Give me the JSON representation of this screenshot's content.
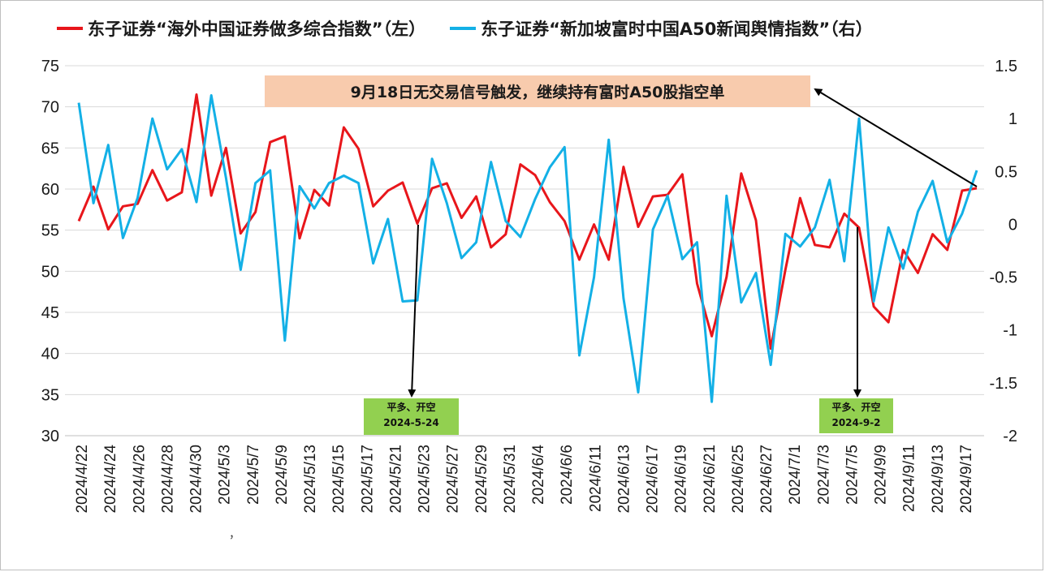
{
  "colors": {
    "left_series": "#e8161b",
    "right_series": "#13b0e6",
    "callout_bg": "#f8cbad",
    "box_bg": "#92d050",
    "grid": "#d9d9d9"
  },
  "legend": {
    "left": "东子证券“海外中国证券做多综合指数”（左）",
    "right": "东子证券“新加坡富时中国A50新闻舆情指数”（右）"
  },
  "callout": "9月18日无交易信号触发，继续持有富时A50股指空单",
  "annotations": [
    {
      "line1": "平多、开空",
      "line2": "2024-5-24"
    },
    {
      "line1": "平多、开空",
      "line2": "2024-9-2"
    }
  ],
  "stray_mark": "，",
  "chart_data": {
    "type": "line",
    "x_tick_labels": [
      "2024/4/22",
      "2024/4/24",
      "2024/4/26",
      "2024/4/28",
      "2024/4/30",
      "2024/5/3",
      "2024/5/7",
      "2024/5/9",
      "2024/5/13",
      "2024/5/15",
      "2024/5/17",
      "2024/5/21",
      "2024/5/23",
      "2024/5/27",
      "2024/5/29",
      "2024/5/31",
      "2024/6/4",
      "2024/6/6",
      "2024/6/11",
      "2024/6/13",
      "2024/6/17",
      "2024/6/19",
      "2024/6/21",
      "2024/6/25",
      "2024/6/27",
      "2024/7/1",
      "2024/7/3",
      "2024/7/5",
      "2024/9/9",
      "2024/9/11",
      "2024/9/13",
      "2024/9/17"
    ],
    "y_left": {
      "min": 30,
      "max": 75,
      "ticks": [
        "30",
        "35",
        "40",
        "45",
        "50",
        "55",
        "60",
        "65",
        "70",
        "75"
      ]
    },
    "y_right": {
      "min": -2,
      "max": 1.5,
      "ticks": [
        "-2",
        "-1.5",
        "-1",
        "-0.5",
        "0",
        "0.5",
        "1",
        "1.5"
      ]
    },
    "grid": true,
    "legend_position": "top",
    "series": [
      {
        "name": "东子证券“海外中国证券做多综合指数”（左）",
        "axis": "left",
        "values": [
          56.1,
          60.3,
          55.1,
          57.9,
          58.2,
          62.3,
          58.6,
          59.6,
          71.5,
          59.2,
          65.0,
          54.6,
          57.2,
          65.7,
          66.4,
          54.0,
          59.9,
          58.0,
          67.5,
          64.9,
          57.9,
          59.8,
          60.8,
          55.8,
          60.1,
          60.7,
          56.5,
          59.1,
          52.9,
          54.5,
          63.0,
          61.7,
          58.4,
          56.1,
          51.4,
          55.7,
          51.4,
          62.7,
          55.4,
          59.1,
          59.3,
          61.8,
          48.5,
          42.1,
          49.3,
          61.9,
          56.2,
          40.6,
          50.2,
          58.9,
          53.2,
          52.9,
          57.0,
          55.3,
          45.7,
          43.8,
          52.6,
          49.8,
          54.5,
          52.6,
          59.8,
          60.1
        ]
      },
      {
        "name": "东子证券“新加坡富时中国A50新闻舆情指数”（右）",
        "axis": "right",
        "values": [
          1.15,
          0.2,
          0.75,
          -0.13,
          0.25,
          1.0,
          0.52,
          0.71,
          0.21,
          1.22,
          0.44,
          -0.43,
          0.39,
          0.51,
          -1.1,
          0.36,
          0.15,
          0.39,
          0.46,
          0.39,
          -0.37,
          0.05,
          -0.73,
          -0.72,
          0.62,
          0.2,
          -0.32,
          -0.17,
          0.59,
          0.03,
          -0.12,
          0.24,
          0.54,
          0.73,
          -1.24,
          -0.5,
          0.8,
          -0.7,
          -1.59,
          -0.05,
          0.27,
          -0.33,
          -0.17,
          -1.68,
          0.27,
          -0.74,
          -0.46,
          -1.33,
          -0.09,
          -0.21,
          -0.03,
          0.42,
          -0.35,
          1.0,
          -0.73,
          -0.03,
          -0.42,
          0.12,
          0.41,
          -0.17,
          0.1,
          0.51
        ]
      }
    ]
  }
}
